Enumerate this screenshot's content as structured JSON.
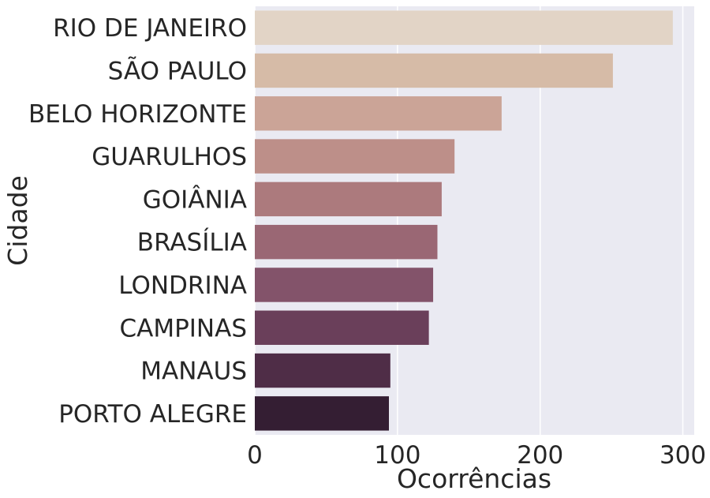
{
  "chart_data": {
    "type": "bar",
    "orientation": "horizontal",
    "categories": [
      "RIO DE JANEIRO",
      "SÃO PAULO",
      "BELO HORIZONTE",
      "GUARULHOS",
      "GOIÂNIA",
      "BRASÍLIA",
      "LONDRINA",
      "CAMPINAS",
      "MANAUS",
      "PORTO ALEGRE"
    ],
    "values": [
      293,
      251,
      173,
      140,
      131,
      128,
      125,
      122,
      95,
      94
    ],
    "xlabel": "Ocorrências",
    "ylabel": "Cidade",
    "xlim": [
      0,
      308
    ],
    "xticks": [
      0,
      100,
      200,
      300
    ],
    "xtick_labels": [
      "0",
      "100",
      "200",
      "300"
    ],
    "grid": true,
    "colors": [
      "#e2d4c6",
      "#d6bba7",
      "#cba497",
      "#bd8f89",
      "#ac7a7d",
      "#9a6774",
      "#83536a",
      "#6a3f5a",
      "#4f2d47",
      "#341e33"
    ],
    "background": "#eaeaf2"
  }
}
